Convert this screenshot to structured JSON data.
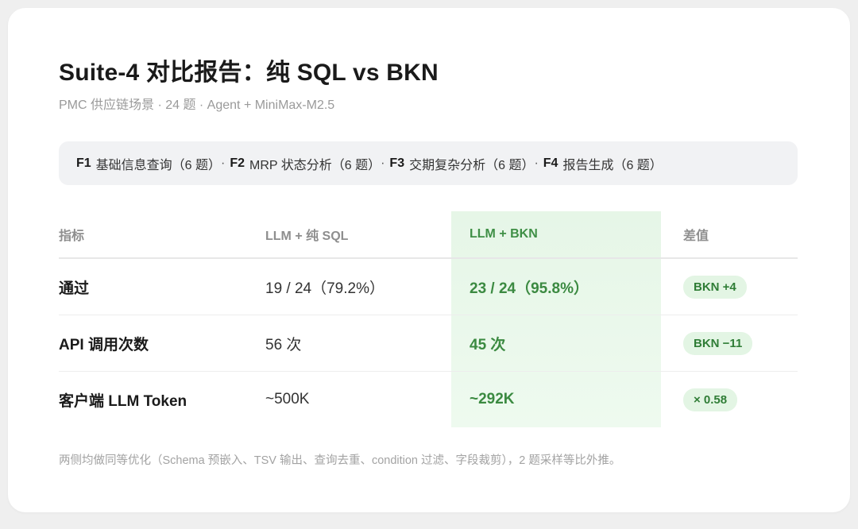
{
  "title": "Suite-4 对比报告：纯 SQL vs BKN",
  "subtitle": "PMC 供应链场景 · 24 题 · Agent + MiniMax-M2.5",
  "categories": [
    {
      "code": "F1",
      "label": "基础信息查询（6 题）"
    },
    {
      "code": "F2",
      "label": "MRP 状态分析（6 题）"
    },
    {
      "code": "F3",
      "label": "交期复杂分析（6 题）"
    },
    {
      "code": "F4",
      "label": "报告生成（6 题）"
    }
  ],
  "category_separator": "·",
  "table": {
    "headers": [
      "指标",
      "LLM + 纯 SQL",
      "LLM + BKN",
      "差值"
    ],
    "rows": [
      {
        "metric": "通过",
        "sql": "19 / 24（79.2%）",
        "bkn": "23 / 24（95.8%）",
        "diff": "BKN +4"
      },
      {
        "metric": "API 调用次数",
        "sql": "56 次",
        "bkn": "45 次",
        "diff": "BKN −11"
      },
      {
        "metric": "客户端 LLM Token",
        "sql": "~500K",
        "bkn": "~292K",
        "diff": "× 0.58"
      }
    ]
  },
  "footnote": "两侧均做同等优化（Schema 预嵌入、TSV 输出、查询去重、condition 过滤、字段裁剪），2 题采样等比外推。",
  "colors": {
    "accent_green": "#3b8a41",
    "highlight_bg": "#e6f6e7",
    "badge_bg": "#e3f5e4"
  }
}
